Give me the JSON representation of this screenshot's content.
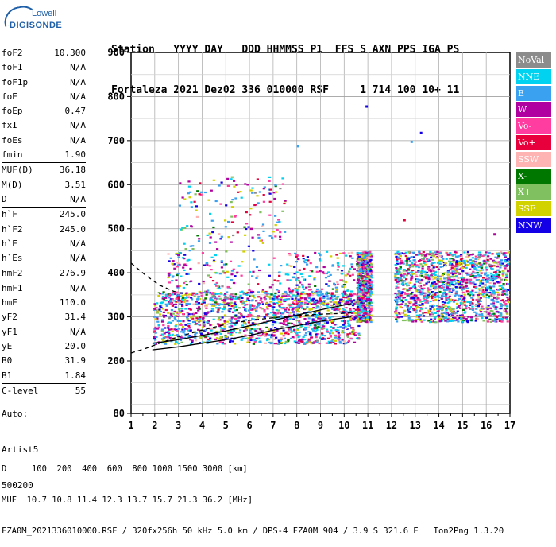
{
  "logo": {
    "line1": "Lowell",
    "line2": "DIGISONDE"
  },
  "header": {
    "row1": "Station   YYYY DAY   DDD HHMMSS P1  FFS S AXN PPS IGA PS",
    "row2": "Fortaleza 2021 Dez02 336 010000 RSF     1 714 100 10+ 11"
  },
  "params": {
    "group1": [
      {
        "name": "foF2",
        "value": "10.300"
      },
      {
        "name": "foF1",
        "value": "N/A"
      },
      {
        "name": "foF1p",
        "value": "N/A"
      },
      {
        "name": "foE",
        "value": "N/A"
      },
      {
        "name": "foEp",
        "value": "0.47"
      },
      {
        "name": "fxI",
        "value": "N/A"
      },
      {
        "name": "foEs",
        "value": "N/A"
      },
      {
        "name": "fmin",
        "value": "1.90"
      }
    ],
    "group2": [
      {
        "name": "MUF(D)",
        "value": "36.18"
      },
      {
        "name": "M(D)",
        "value": "3.51"
      },
      {
        "name": "D",
        "value": "N/A"
      }
    ],
    "group3": [
      {
        "name": "h`F",
        "value": "245.0"
      },
      {
        "name": "h`F2",
        "value": "245.0"
      },
      {
        "name": "h`E",
        "value": "N/A"
      },
      {
        "name": "h`Es",
        "value": "N/A"
      }
    ],
    "group4": [
      {
        "name": "hmF2",
        "value": "276.9"
      },
      {
        "name": "hmF1",
        "value": "N/A"
      },
      {
        "name": "hmE",
        "value": "110.0"
      },
      {
        "name": "yF2",
        "value": "31.4"
      },
      {
        "name": "yF1",
        "value": "N/A"
      },
      {
        "name": "yE",
        "value": "20.0"
      },
      {
        "name": "B0",
        "value": "31.9"
      },
      {
        "name": "B1",
        "value": "1.84"
      }
    ],
    "group5": [
      {
        "name": "C-level",
        "value": "55"
      }
    ]
  },
  "auto": {
    "line1": "Auto:",
    "line2": "Artist5",
    "line3": "500200"
  },
  "legend": [
    {
      "label": "NoVal",
      "color": "#8c8c8c"
    },
    {
      "label": "NNE",
      "color": "#00d2f0"
    },
    {
      "label": "E",
      "color": "#3aa0f0"
    },
    {
      "label": "W",
      "color": "#b000a0"
    },
    {
      "label": "Vo-",
      "color": "#ff3ca0"
    },
    {
      "label": "Vo+",
      "color": "#e8003c"
    },
    {
      "label": "SSW",
      "color": "#ffb4b4"
    },
    {
      "label": "X-",
      "color": "#007800"
    },
    {
      "label": "X+",
      "color": "#80c060"
    },
    {
      "label": "SSE",
      "color": "#d2d200"
    },
    {
      "label": "NNW",
      "color": "#1400e6"
    }
  ],
  "footer": {
    "line1": "D     100  200  400  600  800 1000 1500 3000 [km]",
    "line2": "MUF  10.7 10.8 11.4 12.3 13.7 15.7 21.3 36.2 [MHz]",
    "line3": "FZA0M_2021336010000.RSF / 320fx256h 50 kHz 5.0 km / DPS-4 FZA0M 904 / 3.9 S 321.6 E   Ion2Png 1.3.20"
  },
  "chart_data": {
    "type": "scatter",
    "xlabel": "",
    "ylabel": "",
    "xlim": [
      1,
      17
    ],
    "ylim": [
      80,
      900
    ],
    "x_ticks": [
      "1",
      "2",
      "3",
      "4",
      "5",
      "6",
      "7",
      "8",
      "9",
      "10",
      "11",
      "12",
      "13",
      "14",
      "15",
      "16",
      "17"
    ],
    "y_ticks": [
      "80",
      "200",
      "300",
      "400",
      "500",
      "600",
      "700",
      "800",
      "900"
    ],
    "grid": true,
    "traces": [
      {
        "name": "o-trace",
        "points": [
          [
            1.9,
            225
          ],
          [
            3,
            232
          ],
          [
            4,
            240
          ],
          [
            5,
            248
          ],
          [
            6,
            258
          ],
          [
            7,
            270
          ],
          [
            8,
            280
          ],
          [
            9,
            290
          ],
          [
            10,
            298
          ],
          [
            10.3,
            300
          ]
        ]
      },
      {
        "name": "x-trace",
        "points": [
          [
            1.9,
            240
          ],
          [
            3,
            248
          ],
          [
            4,
            258
          ],
          [
            5,
            268
          ],
          [
            6,
            280
          ],
          [
            7,
            292
          ],
          [
            8,
            304
          ],
          [
            9,
            316
          ],
          [
            10.3,
            330
          ]
        ]
      },
      {
        "name": "dashed-profile",
        "points": [
          [
            1,
            218
          ],
          [
            1.6,
            228
          ],
          [
            2.2,
            240
          ],
          [
            3,
            255
          ],
          [
            4,
            270
          ],
          [
            5,
            283
          ],
          [
            6,
            292
          ],
          [
            7,
            298
          ],
          [
            8,
            303
          ],
          [
            9,
            306
          ],
          [
            10,
            308
          ],
          [
            10.3,
            309
          ]
        ]
      },
      {
        "name": "dashed-upper",
        "points": [
          [
            1,
            422
          ],
          [
            1.6,
            395
          ],
          [
            2.2,
            372
          ],
          [
            2.8,
            358
          ],
          [
            3.3,
            352
          ]
        ]
      }
    ],
    "echo_regions": [
      {
        "x": [
          1.9,
          10.6
        ],
        "y": [
          240,
          360
        ],
        "density": "high"
      },
      {
        "x": [
          2.5,
          10.4
        ],
        "y": [
          330,
          620
        ],
        "density": "medium"
      },
      {
        "x": [
          10.5,
          11.1
        ],
        "y": [
          290,
          450
        ],
        "density": "medium"
      },
      {
        "x": [
          12.1,
          16.9
        ],
        "y": [
          290,
          450
        ],
        "density": "high"
      }
    ]
  }
}
